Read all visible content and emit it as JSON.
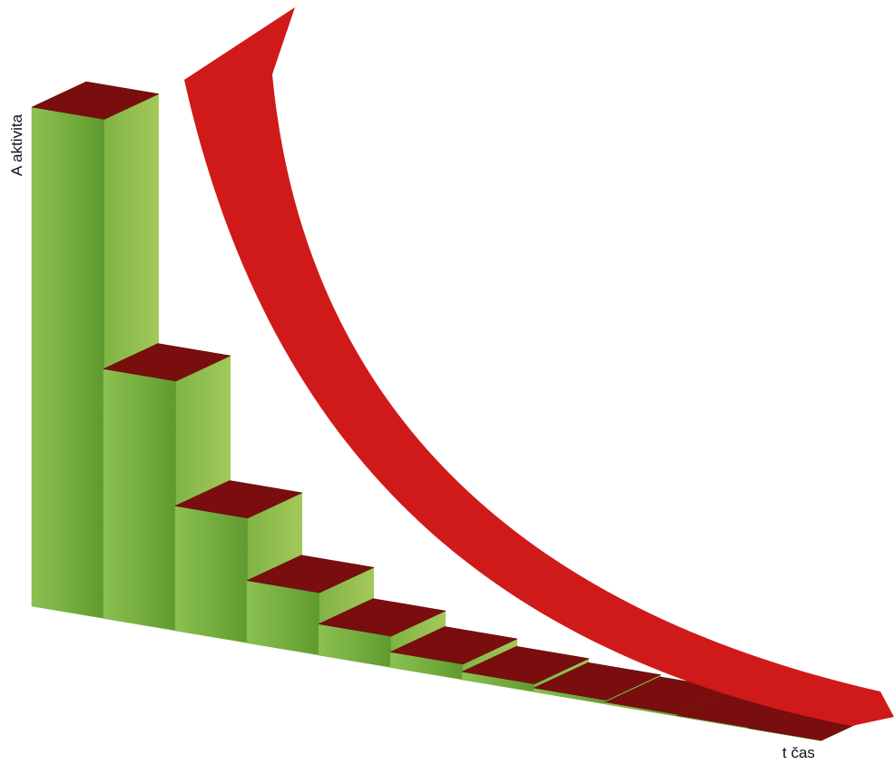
{
  "chart_data": {
    "type": "bar",
    "y_label": "A aktivita",
    "x_label": "t čas",
    "categories": [
      null,
      null,
      null,
      null,
      null,
      null,
      null,
      null,
      null,
      null,
      null
    ],
    "values": [
      100,
      50,
      25,
      12.5,
      6.25,
      3.1,
      1.6,
      0.8,
      0.4,
      0.2,
      0.1
    ],
    "color": "#7cb342",
    "top_color": "#7a0e0e",
    "ylim": [
      0,
      100
    ]
  }
}
